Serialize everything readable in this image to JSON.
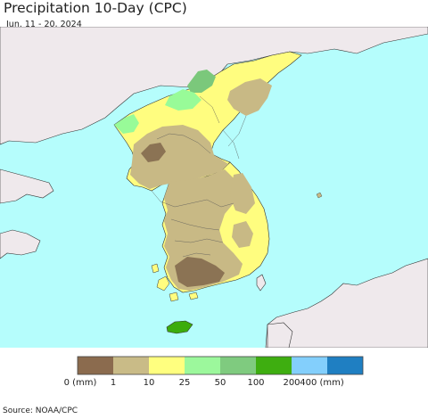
{
  "header": {
    "title": "Precipitation 10-Day (CPC)",
    "subtitle": "Jun. 11 - 20, 2024"
  },
  "map": {
    "colors": {
      "ocean": "#b5fdfc",
      "foreign_land": "#efe9ec",
      "class_0_1": "#8b7354",
      "class_1_10": "#c8b985",
      "class_10_25": "#fffd7f",
      "class_25_50": "#98fb98",
      "class_50_100": "#7bc87b",
      "class_100_200": "#3cac0c"
    }
  },
  "legend": {
    "items": [
      {
        "label": "0 (mm)",
        "color": "#8b6b4e"
      },
      {
        "label": "1",
        "color": "#c9bb87"
      },
      {
        "label": "10",
        "color": "#ffff7f"
      },
      {
        "label": "25",
        "color": "#9cf89c"
      },
      {
        "label": "50",
        "color": "#7fcb7f"
      },
      {
        "label": "100",
        "color": "#3eae10"
      },
      {
        "label": "200",
        "color": "#83cffc"
      },
      {
        "label": "400 (mm)",
        "color": "#1f7fc2"
      }
    ]
  },
  "footer": {
    "source": "Source: NOAA/CPC"
  }
}
